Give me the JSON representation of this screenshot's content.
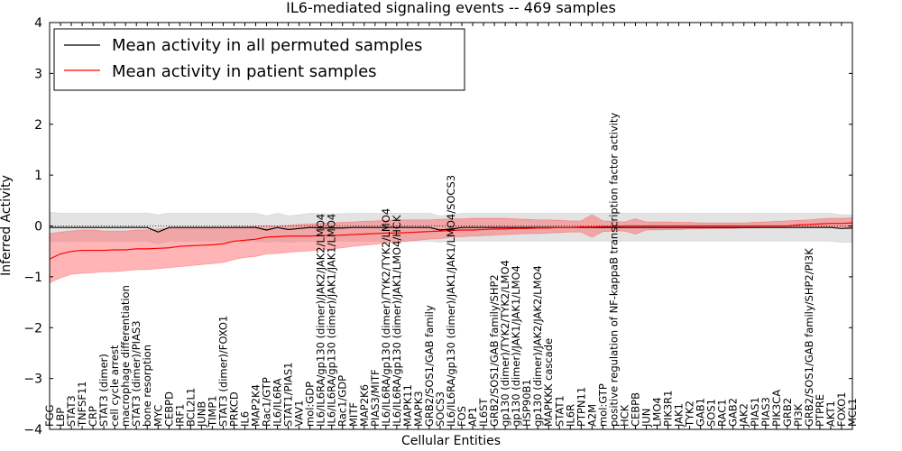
{
  "chart_data": {
    "type": "line",
    "title": "IL6-mediated signaling events -- 469 samples",
    "xlabel": "Cellular Entities",
    "ylabel": "Inferred Activity",
    "ylim": [
      -4,
      4
    ],
    "yticks": [
      -4,
      -3,
      -2,
      -1,
      0,
      1,
      2,
      3,
      4
    ],
    "legend_position": "top-left",
    "categories": [
      "FGG",
      "LBP",
      "STAT3",
      "TNFSF11",
      "CRP",
      "STAT3 (dimer)",
      "cell cycle arrest",
      "macrophage differentiation",
      "STAT3 (dimer)/PIAS3",
      "bone resorption",
      "MYC",
      "CEBPD",
      "IRF1",
      "BCL2L1",
      "JUNB",
      "TIMP1",
      "STAT3 (dimer)/FOXO1",
      "PRKCD",
      "IL6",
      "MAP2K4",
      "Rac1/GTP",
      "IL6/IL6RA",
      "STAT1/PIAS1",
      "VAV1",
      "mol:GDP",
      "IL6/IL6RA/gp130 (dimer)/JAK2/JAK2/LMO4",
      "IL6/IL6RA/gp130 (dimer)/JAK1/JAK1/LMO4",
      "Rac1/GDP",
      "MITF",
      "MAP2K6",
      "PIAS3/MITF",
      "IL6/IL6RA/gp130 (dimer)/TYK2/TYK2/LMO4",
      "IL6/IL6RA/gp130 (dimer)/JAK1/LMO4/HCK",
      "MAPK11",
      "MAPK3",
      "GRB2/SOS1/GAB family",
      "SOCS3",
      "IL6/IL6RA/gp130 (dimer)/JAK1/JAK1/LMO4/SOCS3",
      "FOS",
      "AP1",
      "IL6ST",
      "GRB2/SOS1/GAB family/SHP2",
      "gp130 (dimer)/TYK2/TYK2/LMO4",
      "gp130 (dimer)/JAK1/JAK1/LMO4",
      "HSP90B1",
      "gp130 (dimer)/JAK2/JAK2/LMO4",
      "MAPKKK cascade",
      "STAT1",
      "IL6R",
      "PTPN11",
      "A2M",
      "mol:GTP",
      "positive regulation of NF-kappaB transcription factor activity",
      "HCK",
      "CEBPB",
      "JUN",
      "LMO4",
      "PIK3R1",
      "JAK1",
      "TYK2",
      "GAB1",
      "SOS1",
      "RAC1",
      "GAB2",
      "JAK2",
      "PIAS1",
      "PIAS3",
      "PIK3CA",
      "GRB2",
      "PI3K",
      "GRB2/SOS1/GAB family/SHP2/PI3K",
      "PTPRE",
      "AKT1",
      "FOXO1",
      "MCL1"
    ],
    "series": [
      {
        "name": "Mean activity in all permuted samples",
        "color": "#000000",
        "values": [
          -0.03,
          -0.03,
          -0.03,
          -0.03,
          -0.03,
          -0.03,
          -0.03,
          -0.03,
          -0.03,
          -0.03,
          -0.12,
          -0.03,
          -0.03,
          -0.03,
          -0.03,
          -0.03,
          -0.03,
          -0.03,
          -0.03,
          -0.03,
          -0.08,
          -0.03,
          -0.07,
          -0.05,
          -0.03,
          -0.04,
          -0.04,
          -0.04,
          -0.03,
          -0.03,
          -0.03,
          -0.03,
          -0.03,
          -0.03,
          -0.03,
          -0.03,
          -0.08,
          -0.06,
          -0.03,
          -0.03,
          -0.03,
          -0.03,
          -0.03,
          -0.03,
          -0.03,
          -0.03,
          -0.03,
          -0.03,
          -0.03,
          -0.03,
          -0.03,
          -0.03,
          -0.03,
          -0.03,
          -0.03,
          -0.03,
          -0.03,
          -0.03,
          -0.03,
          -0.03,
          -0.03,
          -0.03,
          -0.03,
          -0.03,
          -0.03,
          -0.03,
          -0.03,
          -0.03,
          -0.03,
          -0.03,
          -0.03,
          -0.03,
          -0.03,
          -0.05,
          -0.04
        ],
        "band_low": [
          -0.3,
          -0.3,
          -0.3,
          -0.3,
          -0.3,
          -0.3,
          -0.3,
          -0.3,
          -0.3,
          -0.3,
          -0.35,
          -0.3,
          -0.3,
          -0.3,
          -0.3,
          -0.3,
          -0.3,
          -0.3,
          -0.3,
          -0.3,
          -0.32,
          -0.3,
          -0.32,
          -0.3,
          -0.3,
          -0.3,
          -0.3,
          -0.3,
          -0.3,
          -0.3,
          -0.3,
          -0.3,
          -0.3,
          -0.3,
          -0.3,
          -0.3,
          -0.32,
          -0.3,
          -0.3,
          -0.3,
          -0.3,
          -0.3,
          -0.3,
          -0.3,
          -0.3,
          -0.3,
          -0.3,
          -0.3,
          -0.3,
          -0.3,
          -0.3,
          -0.3,
          -0.3,
          -0.3,
          -0.3,
          -0.3,
          -0.3,
          -0.3,
          -0.3,
          -0.3,
          -0.3,
          -0.3,
          -0.3,
          -0.3,
          -0.3,
          -0.3,
          -0.3,
          -0.3,
          -0.3,
          -0.3,
          -0.3,
          -0.3,
          -0.3,
          -0.32,
          -0.32
        ],
        "band_high": [
          0.27,
          0.25,
          0.25,
          0.25,
          0.25,
          0.25,
          0.25,
          0.25,
          0.25,
          0.25,
          0.22,
          0.25,
          0.25,
          0.25,
          0.25,
          0.25,
          0.25,
          0.25,
          0.25,
          0.25,
          0.2,
          0.25,
          0.2,
          0.22,
          0.25,
          0.24,
          0.24,
          0.24,
          0.25,
          0.25,
          0.25,
          0.25,
          0.25,
          0.25,
          0.25,
          0.25,
          0.2,
          0.22,
          0.25,
          0.25,
          0.25,
          0.25,
          0.25,
          0.25,
          0.25,
          0.25,
          0.25,
          0.25,
          0.25,
          0.25,
          0.25,
          0.25,
          0.25,
          0.25,
          0.25,
          0.25,
          0.25,
          0.25,
          0.25,
          0.25,
          0.25,
          0.25,
          0.25,
          0.25,
          0.25,
          0.25,
          0.25,
          0.25,
          0.25,
          0.25,
          0.25,
          0.25,
          0.25,
          0.22,
          0.22
        ]
      },
      {
        "name": "Mean activity in patient samples",
        "color": "#ff0000",
        "values": [
          -0.65,
          -0.55,
          -0.5,
          -0.48,
          -0.48,
          -0.48,
          -0.47,
          -0.47,
          -0.45,
          -0.45,
          -0.44,
          -0.43,
          -0.4,
          -0.39,
          -0.38,
          -0.37,
          -0.35,
          -0.3,
          -0.28,
          -0.26,
          -0.22,
          -0.21,
          -0.2,
          -0.2,
          -0.2,
          -0.19,
          -0.19,
          -0.18,
          -0.17,
          -0.16,
          -0.15,
          -0.14,
          -0.14,
          -0.13,
          -0.12,
          -0.11,
          -0.1,
          -0.09,
          -0.08,
          -0.08,
          -0.07,
          -0.06,
          -0.06,
          -0.05,
          -0.05,
          -0.04,
          -0.04,
          -0.03,
          -0.03,
          -0.02,
          -0.02,
          -0.01,
          -0.01,
          0.0,
          0.0,
          0.0,
          0.0,
          0.0,
          0.0,
          0.0,
          0.0,
          0.0,
          0.0,
          0.0,
          0.0,
          0.0,
          0.0,
          0.0,
          0.0,
          0.02,
          0.03,
          0.04,
          0.05,
          0.05,
          0.06
        ],
        "band_low": [
          -1.12,
          -1.02,
          -0.95,
          -0.93,
          -0.92,
          -0.9,
          -0.9,
          -0.88,
          -0.86,
          -0.86,
          -0.84,
          -0.82,
          -0.8,
          -0.78,
          -0.76,
          -0.74,
          -0.72,
          -0.66,
          -0.62,
          -0.6,
          -0.55,
          -0.54,
          -0.52,
          -0.5,
          -0.49,
          -0.47,
          -0.45,
          -0.43,
          -0.4,
          -0.38,
          -0.36,
          -0.33,
          -0.32,
          -0.3,
          -0.28,
          -0.26,
          -0.25,
          -0.22,
          -0.21,
          -0.2,
          -0.19,
          -0.18,
          -0.17,
          -0.16,
          -0.15,
          -0.15,
          -0.14,
          -0.13,
          -0.12,
          -0.12,
          -0.22,
          -0.11,
          -0.1,
          -0.1,
          -0.16,
          -0.08,
          -0.08,
          -0.07,
          -0.07,
          -0.06,
          -0.06,
          -0.05,
          -0.05,
          -0.05,
          -0.04,
          -0.04,
          -0.03,
          -0.03,
          -0.03,
          -0.03,
          -0.03,
          -0.02,
          -0.02,
          -0.02,
          -0.02
        ],
        "band_high": [
          -0.15,
          -0.12,
          -0.1,
          -0.08,
          -0.08,
          -0.1,
          -0.1,
          -0.1,
          -0.08,
          -0.08,
          -0.06,
          -0.05,
          -0.04,
          -0.04,
          -0.04,
          -0.04,
          -0.03,
          -0.02,
          -0.02,
          -0.01,
          0.0,
          0.0,
          0.01,
          0.03,
          0.04,
          0.05,
          0.06,
          0.07,
          0.08,
          0.09,
          0.1,
          0.11,
          0.12,
          0.12,
          0.12,
          0.12,
          0.13,
          0.14,
          0.14,
          0.15,
          0.15,
          0.15,
          0.15,
          0.14,
          0.13,
          0.12,
          0.12,
          0.11,
          0.1,
          0.1,
          0.22,
          0.1,
          0.09,
          0.08,
          0.14,
          0.08,
          0.08,
          0.08,
          0.07,
          0.07,
          0.06,
          0.06,
          0.06,
          0.06,
          0.06,
          0.07,
          0.08,
          0.09,
          0.1,
          0.11,
          0.12,
          0.14,
          0.15,
          0.15,
          0.16
        ]
      }
    ]
  }
}
